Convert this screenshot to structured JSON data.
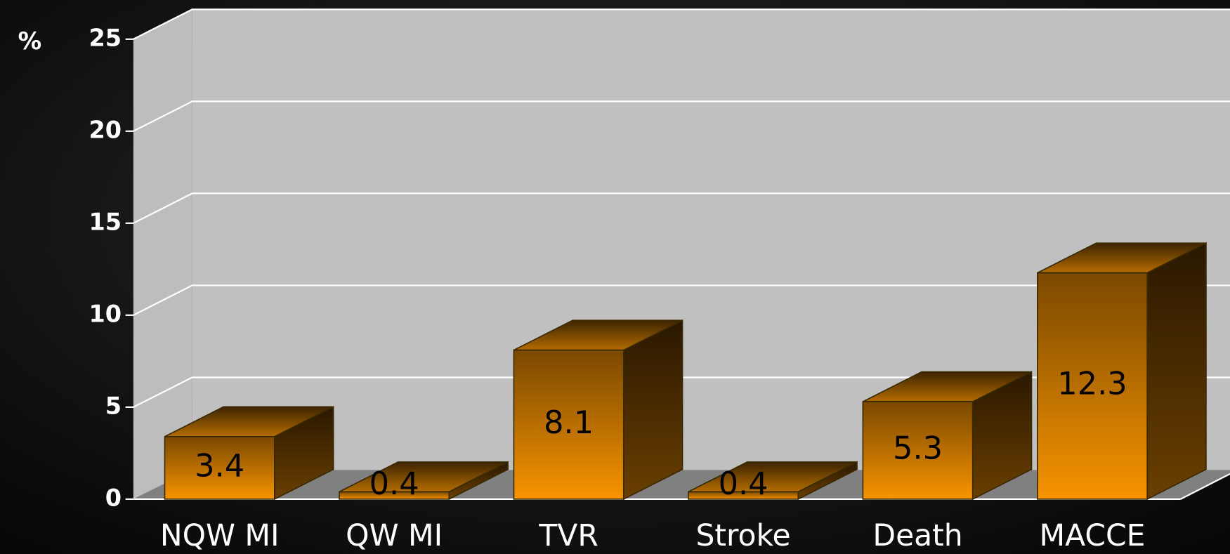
{
  "chart_data": {
    "type": "bar3d",
    "y_label": "%",
    "categories": [
      "NQW MI",
      "QW MI",
      "TVR",
      "Stroke",
      "Death",
      "MACCE"
    ],
    "values": [
      3.4,
      0.4,
      8.1,
      0.4,
      5.3,
      12.3
    ],
    "color": "#f79400",
    "ylim": [
      0,
      25
    ],
    "yticks": [
      0,
      5,
      10,
      15,
      20,
      25
    ],
    "grid": true
  }
}
